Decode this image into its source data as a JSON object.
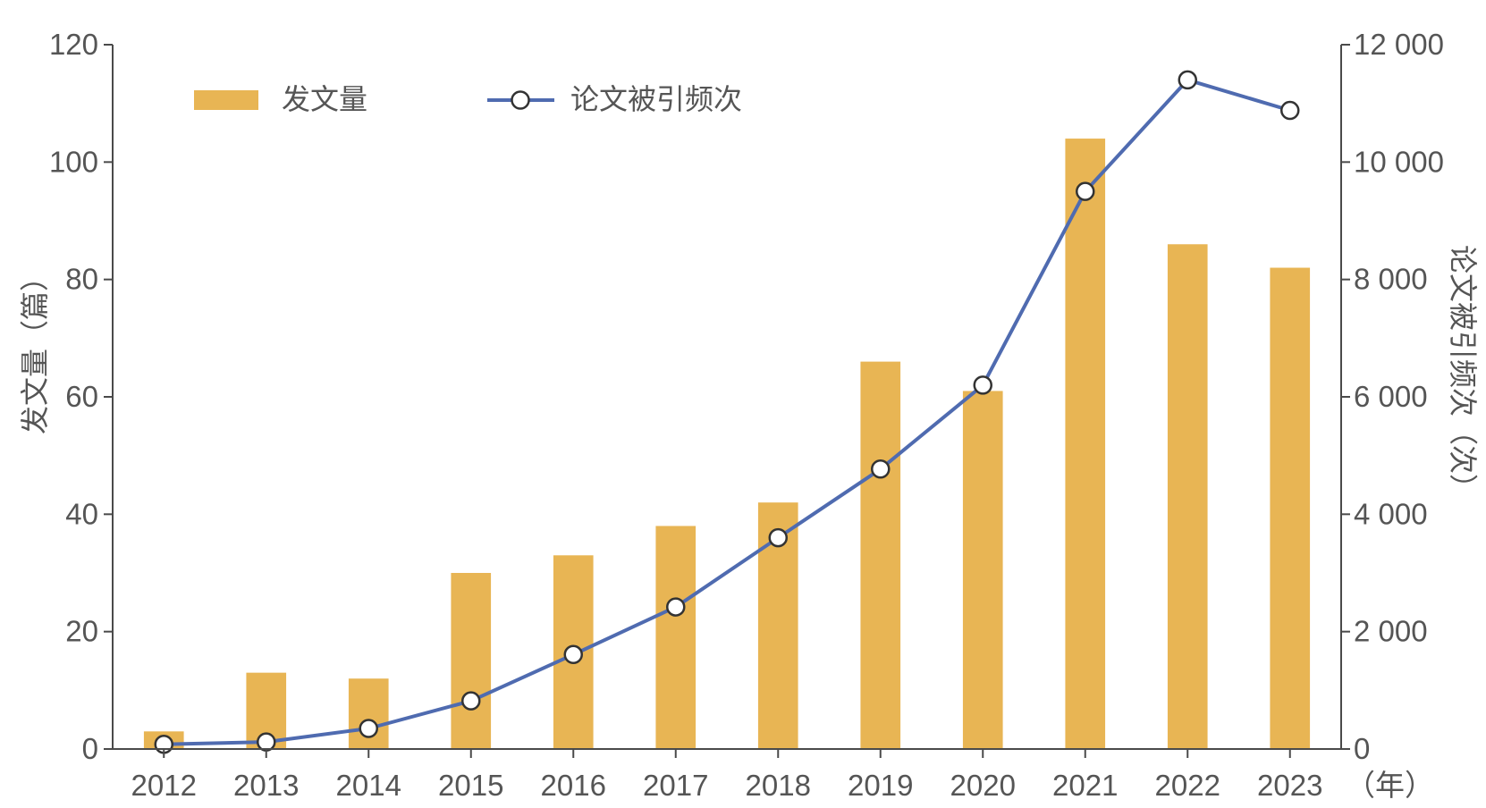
{
  "chart_data": {
    "type": "bar",
    "categories": [
      "2012",
      "2013",
      "2014",
      "2015",
      "2016",
      "2017",
      "2018",
      "2019",
      "2020",
      "2021",
      "2022",
      "2023"
    ],
    "series": [
      {
        "name": "发文量",
        "type": "bar",
        "axis": "left",
        "values": [
          3,
          13,
          12,
          30,
          33,
          38,
          42,
          66,
          61,
          104,
          86,
          82
        ]
      },
      {
        "name": "论文被引频次",
        "type": "line",
        "axis": "right",
        "values": [
          80,
          120,
          350,
          820,
          1610,
          2420,
          3600,
          4770,
          6200,
          9500,
          11400,
          10880
        ]
      }
    ],
    "xlabel": "（年）",
    "ylabel_left": "发文量（篇）",
    "ylabel_right": "论文被引频次（次）",
    "ylim_left": [
      0,
      120
    ],
    "ylim_right": [
      0,
      12000
    ],
    "yticks_left": [
      "0",
      "20",
      "40",
      "60",
      "80",
      "100",
      "120"
    ],
    "yticks_right": [
      "0",
      "2 000",
      "4 000",
      "6 000",
      "8 000",
      "10 000",
      "12 000"
    ],
    "legend_position": "top-left",
    "grid": false,
    "colors": {
      "bar": "#E8B554",
      "line": "#4F6BB0",
      "marker_fill": "#FFFFFF",
      "axis": "#4A4A4A",
      "text": "#555555"
    }
  }
}
